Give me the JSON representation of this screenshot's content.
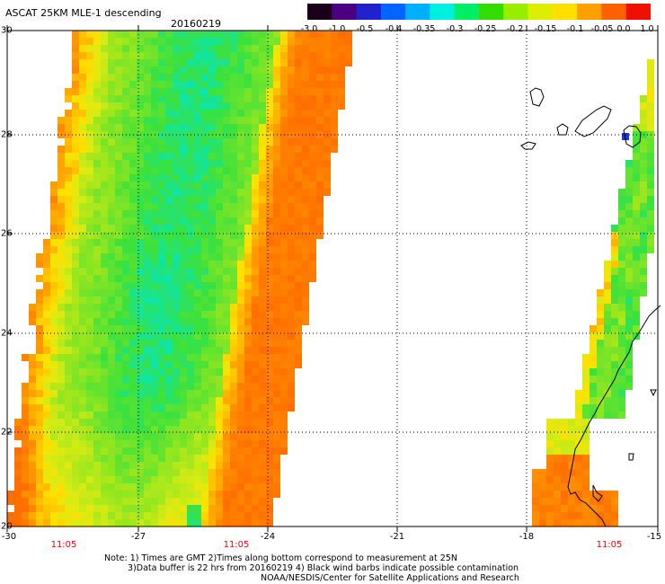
{
  "title": "ASCAT 25KM MLE-1 descending",
  "date": "20160219",
  "colorbar": {
    "colors": [
      "#1a001a",
      "#4b0082",
      "#2222cc",
      "#0066ff",
      "#00b0ff",
      "#00f0e0",
      "#00ee66",
      "#33dd00",
      "#99ee00",
      "#ddee00",
      "#ffe000",
      "#ffa000",
      "#ff6000",
      "#ee1100"
    ],
    "labels": [
      "-3.0",
      "-1.0",
      "-0.5",
      "-0.4",
      "-0.35",
      "-0.3",
      "-0.25",
      "-0.2",
      "-0.15",
      "-0.1",
      "-0.05",
      "0.0",
      "1.0"
    ]
  },
  "map": {
    "lat_ticks": [
      "30",
      "28",
      "26",
      "24",
      "22",
      "20"
    ],
    "lon_ticks": [
      "-30",
      "-27",
      "-24",
      "-21",
      "-18",
      "-15"
    ],
    "times": [
      "11:05",
      "11:05",
      "11:05"
    ]
  },
  "notes": [
    "Note: 1) Times are GMT 2)Times along bottom correspond to measurement at 25N",
    "3)Data buffer is 22 hrs from 20160219 4) Black wind barbs indicate possible contamination",
    "NOAA/NESDIS/Center for Satellite Applications and Research"
  ]
}
